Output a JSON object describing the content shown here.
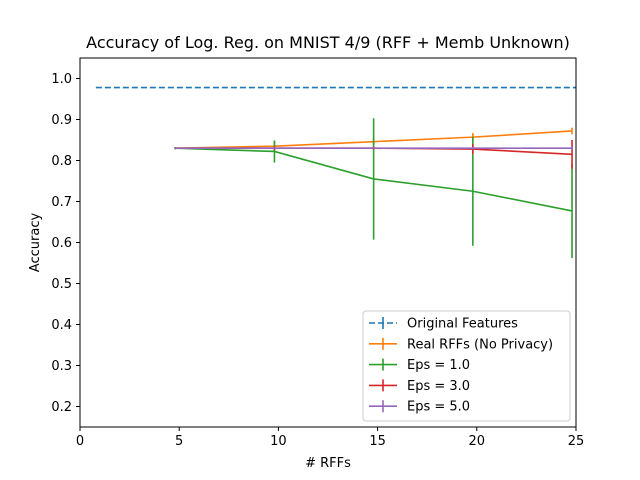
{
  "chart_data": {
    "type": "line",
    "title": "Accuracy of Log. Reg. on MNIST 4/9 (RFF + Memb Unknown)",
    "xlabel": "# RFFs",
    "ylabel": "Accuracy",
    "xlim": [
      0,
      25
    ],
    "ylim": [
      0.15,
      1.05
    ],
    "xticks": [
      0,
      5,
      10,
      15,
      20,
      25
    ],
    "xtick_labels": [
      "0",
      "5",
      "10",
      "15",
      "20",
      "25"
    ],
    "yticks": [
      0.2,
      0.3,
      0.4,
      0.5,
      0.6,
      0.7,
      0.8,
      0.9,
      1.0
    ],
    "ytick_labels": [
      "0.2",
      "0.3",
      "0.4",
      "0.5",
      "0.6",
      "0.7",
      "0.8",
      "0.9",
      "1.0"
    ],
    "grid": false,
    "legend_position": "bottom-right",
    "series": [
      {
        "name": "Original Features",
        "color": "#1f77b4",
        "dashed": true,
        "x": [
          0.8,
          25
        ],
        "y": [
          0.978,
          0.978
        ],
        "err": [
          0,
          0
        ]
      },
      {
        "name": "Real RFFs (No Privacy)",
        "color": "#ff7f0e",
        "dashed": false,
        "x": [
          4.8,
          9.8,
          14.8,
          19.8,
          24.8
        ],
        "y": [
          0.83,
          0.835,
          0.846,
          0.857,
          0.872
        ],
        "err": [
          0.003,
          0.012,
          0.01,
          0.01,
          0.008
        ]
      },
      {
        "name": "Eps = 1.0",
        "color": "#2ca02c",
        "dashed": false,
        "x": [
          4.8,
          9.8,
          14.8,
          19.8,
          24.8
        ],
        "y": [
          0.83,
          0.822,
          0.755,
          0.725,
          0.677
        ],
        "err": [
          0.003,
          0.027,
          0.148,
          0.133,
          0.115
        ]
      },
      {
        "name": "Eps = 3.0",
        "color": "#d62728",
        "dashed": false,
        "x": [
          4.8,
          9.8,
          14.8,
          19.8,
          24.8
        ],
        "y": [
          0.83,
          0.83,
          0.83,
          0.828,
          0.815
        ],
        "err": [
          0.002,
          0.004,
          0.004,
          0.012,
          0.035
        ]
      },
      {
        "name": "Eps = 5.0",
        "color": "#9467bd",
        "dashed": false,
        "x": [
          4.8,
          9.8,
          14.8,
          19.8,
          24.8
        ],
        "y": [
          0.83,
          0.83,
          0.83,
          0.83,
          0.83
        ],
        "err": [
          0.002,
          0.002,
          0.002,
          0.003,
          0.005
        ]
      }
    ]
  }
}
